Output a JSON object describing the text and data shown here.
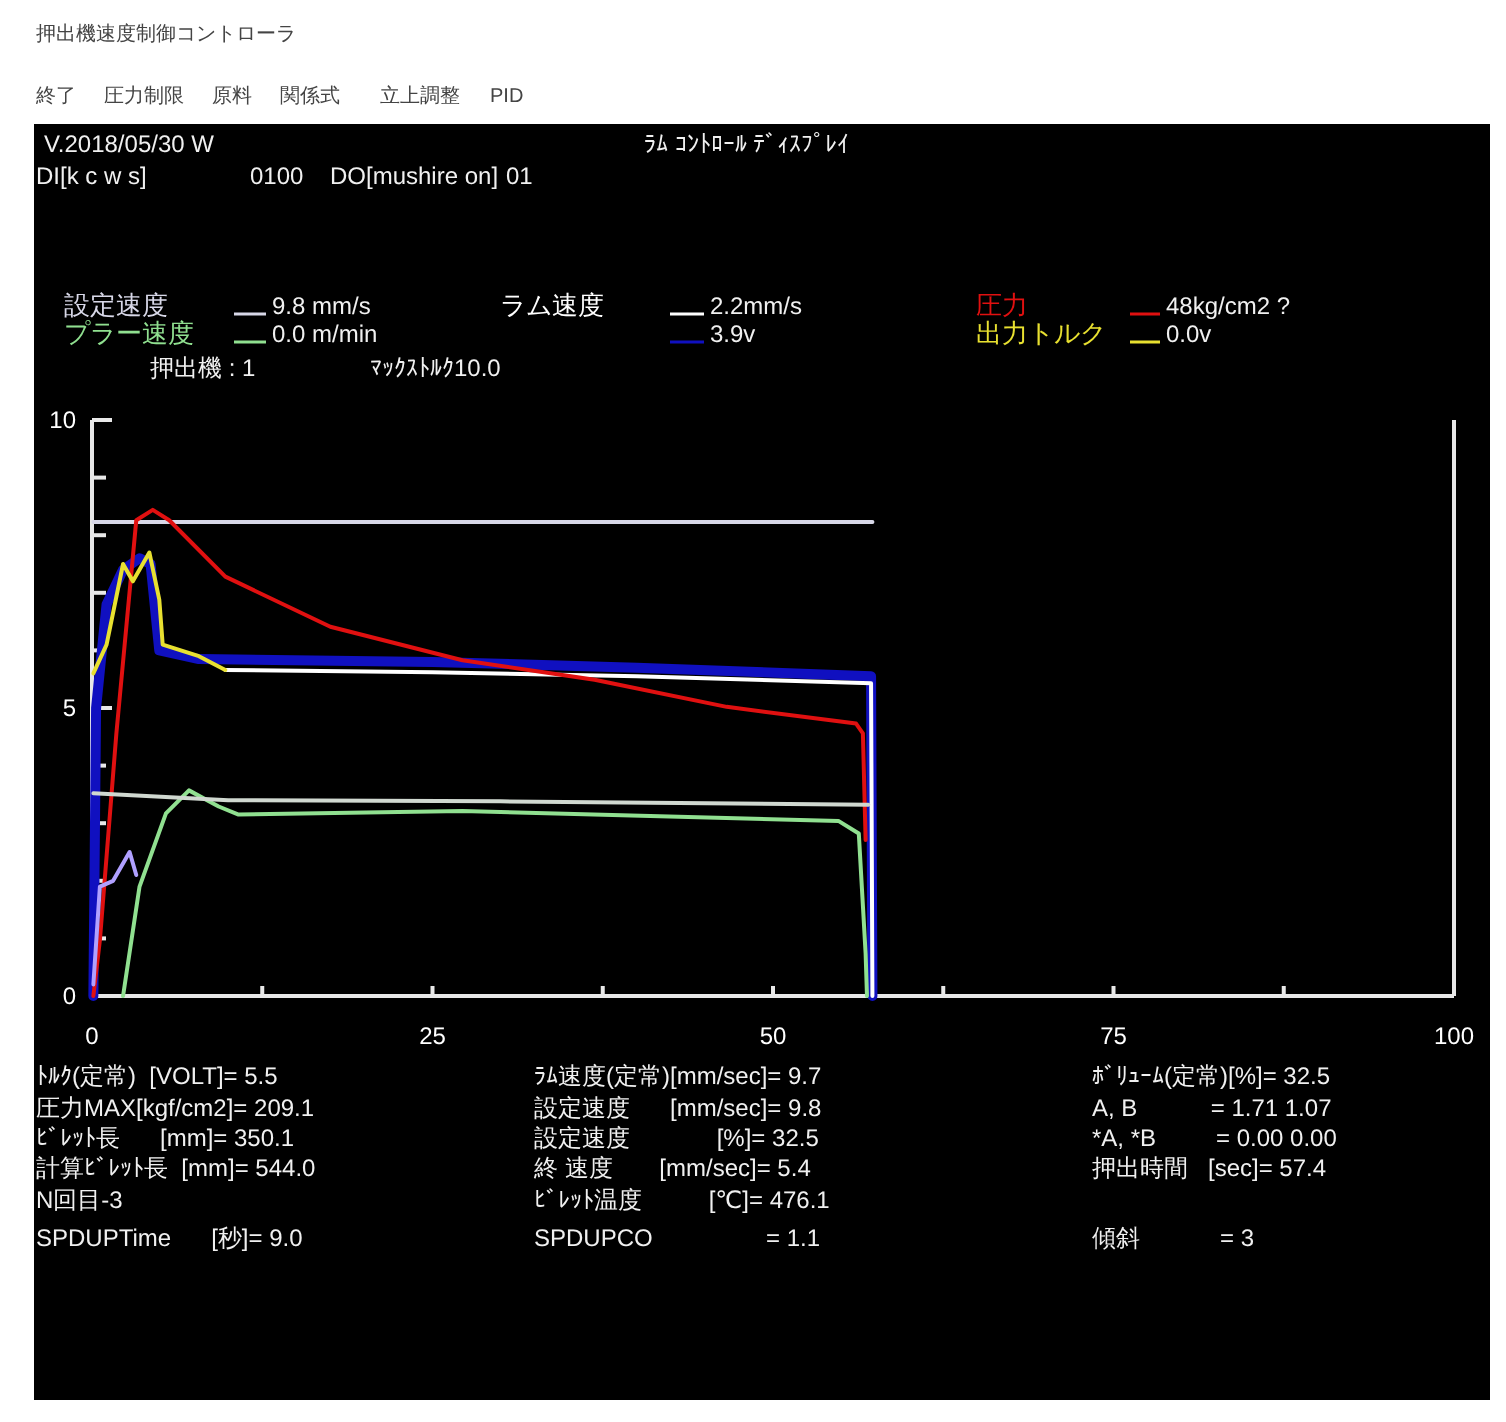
{
  "chart_data": {
    "type": "line",
    "title": "押出機速度制御コントローラ",
    "xlim": [
      0,
      100
    ],
    "ylim": [
      0,
      10
    ],
    "xticks": [
      0,
      {
        "value": 12.5,
        "label": null
      },
      25,
      {
        "value": 37.5,
        "label": null
      },
      50,
      {
        "value": 62.5,
        "label": null
      },
      75,
      {
        "value": 87.5,
        "label": null
      },
      100
    ],
    "yticks": [
      0,
      {
        "value": 1,
        "label": null
      },
      {
        "value": 2,
        "label": null
      },
      {
        "value": 3,
        "label": null
      },
      {
        "value": 4,
        "label": null
      },
      5,
      {
        "value": 6,
        "label": null
      },
      {
        "value": 7,
        "label": null
      },
      {
        "value": 8,
        "label": null
      },
      {
        "value": 9,
        "label": null
      },
      10
    ],
    "grid": false,
    "legend": "top",
    "marker": "none",
    "line_style": "solid",
    "series": [
      {
        "name": "設定速度",
        "color": "#d8d8e8",
        "x": [
          0.1,
          57.3
        ],
        "values": [
          8.23,
          8.23
        ]
      },
      {
        "name": "ラム速度",
        "color": "#ffffff",
        "x": [
          9.79,
          25,
          40,
          57.2,
          57.3
        ],
        "values": [
          5.66,
          5.62,
          5.55,
          5.43,
          0
        ]
      },
      {
        "name": "圧力",
        "color": "#e01010",
        "x": [
          0.1,
          0.58,
          1.79,
          3.25,
          4.46,
          5.67,
          9.79,
          17.5,
          27.2,
          36.9,
          46.6,
          56.1,
          56.6,
          56.8
        ],
        "values": [
          0,
          0.97,
          4.56,
          8.26,
          8.44,
          8.26,
          7.28,
          6.41,
          5.83,
          5.49,
          5.02,
          4.73,
          4.56,
          2.71
        ]
      },
      {
        "name": "プラー速度",
        "color": "#90e090",
        "x": [
          2.28,
          3.49,
          5.43,
          7.12,
          9.3,
          10.76,
          27.2,
          54.8,
          56.3,
          56.8,
          56.9
        ],
        "values": [
          0,
          1.9,
          3.17,
          3.57,
          3.29,
          3.15,
          3.21,
          3.04,
          2.82,
          0.74,
          0
        ]
      },
      {
        "color": "#1010c0",
        "x": [
          0.1,
          0.3,
          1.07,
          2.28,
          3.49,
          4.3,
          4.94,
          7.85,
          25,
          40,
          57.2,
          57.3
        ],
        "values": [
          0,
          5.0,
          6.8,
          7.4,
          7.6,
          7.5,
          6.0,
          5.85,
          5.8,
          5.7,
          5.55,
          0
        ]
      },
      {
        "name": "出力トルク",
        "color": "#e8e030",
        "x": [
          0.1,
          1.07,
          2.28,
          3.0,
          4.21,
          4.94,
          5.19,
          7.85,
          9.79
        ],
        "values": [
          5.6,
          6.1,
          7.5,
          7.2,
          7.7,
          6.88,
          6.1,
          5.9,
          5.66
        ]
      },
      {
        "color": "#b0a0ff",
        "x": [
          0.1,
          0.58,
          1.55,
          2.76,
          3.25
        ],
        "values": [
          0.2,
          1.9,
          2.0,
          2.5,
          2.1
        ]
      },
      {
        "color": "#d0d8d0",
        "x": [
          0.1,
          10,
          30,
          57
        ],
        "values": [
          3.52,
          3.4,
          3.38,
          3.32
        ]
      }
    ],
    "annotations": [
      "9.8 mm/s",
      "2.2mm/s",
      "48kg/cm2 ?",
      "0.0 m/min",
      "3.9v",
      "0.0v",
      "押出機 : 1",
      "ﾏｯｸｽﾄﾙｸ10.0",
      "V.2018/05/30 W",
      "ﾗﾑ ｺﾝﾄﾛｰﾙ ﾃﾞｨｽﾌﾟﾚｲ",
      "DI[k c w s]",
      "0100",
      "DO[mushire on]",
      "01",
      "終了",
      "圧力制限",
      "原料",
      "関係式",
      "立上調整",
      "PID",
      "ﾄﾙｸ(定常)  [VOLT]= 5.5",
      "圧力MAX[kgf/cm2]= 209.1",
      "ﾋﾞﾚｯﾄ長      [mm]= 350.1",
      "計算ﾋﾞﾚｯﾄ長  [mm]= 544.0",
      "N回目-3",
      "SPDUPTime      [秒]= 9.0",
      "ﾗﾑ速度(定常)[mm/sec]= 9.7",
      "設定速度      [mm/sec]= 9.8",
      "設定速度             [%]= 32.5",
      "終 速度       [mm/sec]= 5.4",
      "ﾋﾞﾚｯﾄ温度          [℃]= 476.1",
      "SPDUPCO                 = 1.1",
      "ﾎﾞﾘｭｰﾑ(定常)[%]= 32.5",
      "A, B           = 1.71 1.07",
      "*A, *B         = 0.00 0.00",
      "押出時間   [sec]= 57.4",
      "傾斜            = 3"
    ]
  }
}
